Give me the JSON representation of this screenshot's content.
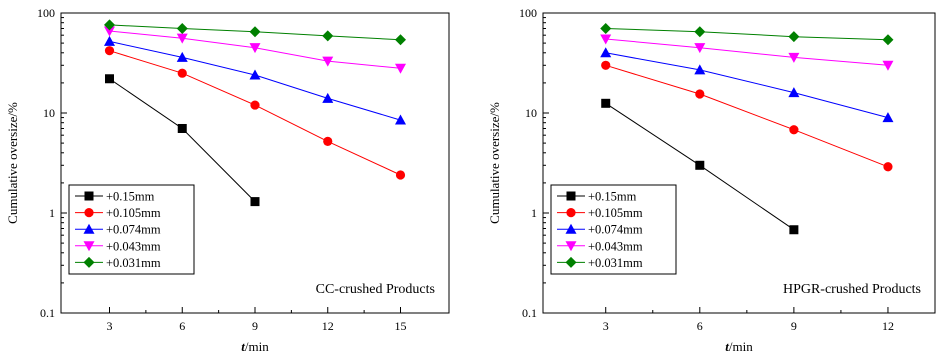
{
  "chart_data": [
    {
      "type": "line",
      "title": "",
      "annotation": "CC-crushed Products",
      "xlabel_italic": "t",
      "xlabel_rest": "/min",
      "ylabel": "Cumulative oversize/%",
      "y_scale": "log",
      "ylim": [
        0.1,
        100
      ],
      "yticks": [
        0.1,
        1,
        10,
        100
      ],
      "yticklabels": [
        "0.1",
        "1",
        "10",
        "100"
      ],
      "xlim": [
        1,
        17
      ],
      "xticks": [
        3,
        6,
        9,
        12,
        15
      ],
      "xticklabels": [
        "3",
        "6",
        "9",
        "12",
        "15"
      ],
      "legend_position": "lower-left",
      "grid": false,
      "series": [
        {
          "name": "+0.15mm",
          "marker": "square",
          "color": "#000000",
          "x": [
            3,
            6,
            9
          ],
          "values": [
            22,
            7,
            1.3
          ]
        },
        {
          "name": "+0.105mm",
          "marker": "circle",
          "color": "#ff0000",
          "x": [
            3,
            6,
            9,
            12,
            15
          ],
          "values": [
            42,
            25,
            12,
            5.2,
            2.4
          ]
        },
        {
          "name": "+0.074mm",
          "marker": "triangle-up",
          "color": "#0000ff",
          "x": [
            3,
            6,
            9,
            12,
            15
          ],
          "values": [
            52,
            36,
            24,
            14,
            8.5
          ]
        },
        {
          "name": "+0.043mm",
          "marker": "triangle-down",
          "color": "#ff00ff",
          "x": [
            3,
            6,
            9,
            12,
            15
          ],
          "values": [
            66,
            56,
            45,
            33,
            28
          ]
        },
        {
          "name": "+0.031mm",
          "marker": "diamond",
          "color": "#008000",
          "x": [
            3,
            6,
            9,
            12,
            15
          ],
          "values": [
            76,
            70,
            65,
            59,
            54
          ]
        }
      ]
    },
    {
      "type": "line",
      "title": "",
      "annotation": "HPGR-crushed Products",
      "xlabel_italic": "t",
      "xlabel_rest": "/min",
      "ylabel": "Cumulative oversize/%",
      "y_scale": "log",
      "ylim": [
        0.1,
        100
      ],
      "yticks": [
        0.1,
        1,
        10,
        100
      ],
      "yticklabels": [
        "0.1",
        "1",
        "10",
        "100"
      ],
      "xlim": [
        1,
        13.5
      ],
      "xticks": [
        3,
        6,
        9,
        12
      ],
      "xticklabels": [
        "3",
        "6",
        "9",
        "12"
      ],
      "legend_position": "lower-left",
      "grid": false,
      "series": [
        {
          "name": "+0.15mm",
          "marker": "square",
          "color": "#000000",
          "x": [
            3,
            6,
            9
          ],
          "values": [
            12.5,
            3,
            0.68
          ]
        },
        {
          "name": "+0.105mm",
          "marker": "circle",
          "color": "#ff0000",
          "x": [
            3,
            6,
            9,
            12
          ],
          "values": [
            30,
            15.5,
            6.8,
            2.9
          ]
        },
        {
          "name": "+0.074mm",
          "marker": "triangle-up",
          "color": "#0000ff",
          "x": [
            3,
            6,
            9,
            12
          ],
          "values": [
            40,
            27,
            16,
            9
          ]
        },
        {
          "name": "+0.043mm",
          "marker": "triangle-down",
          "color": "#ff00ff",
          "x": [
            3,
            6,
            9,
            12
          ],
          "values": [
            55,
            45,
            36,
            30
          ]
        },
        {
          "name": "+0.031mm",
          "marker": "diamond",
          "color": "#008000",
          "x": [
            3,
            6,
            9,
            12
          ],
          "values": [
            70,
            65,
            58,
            54
          ]
        }
      ]
    }
  ]
}
